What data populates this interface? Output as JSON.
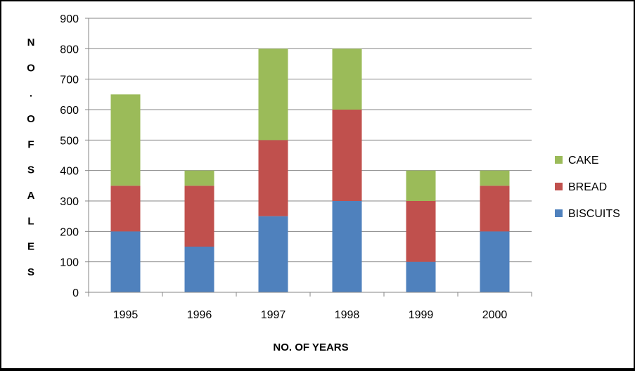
{
  "chart_data": {
    "type": "bar",
    "stacked": true,
    "categories": [
      "1995",
      "1996",
      "1997",
      "1998",
      "1999",
      "2000"
    ],
    "series": [
      {
        "name": "BISCUITS",
        "color": "#4f81bd",
        "values": [
          200,
          150,
          250,
          300,
          100,
          200
        ]
      },
      {
        "name": "BREAD",
        "color": "#c0504d",
        "values": [
          150,
          200,
          250,
          300,
          200,
          150
        ]
      },
      {
        "name": "CAKE",
        "color": "#9bbb59",
        "values": [
          300,
          50,
          300,
          200,
          100,
          50
        ]
      }
    ],
    "xlabel": "NO. OF YEARS",
    "ylabel": "NO. OF SALES",
    "ylim": [
      0,
      900
    ],
    "yticks": [
      "0",
      "100",
      "200",
      "300",
      "400",
      "500",
      "600",
      "700",
      "800",
      "900"
    ],
    "grid": true,
    "legend_position": "right",
    "legend_order": [
      "CAKE",
      "BREAD",
      "BISCUITS"
    ]
  }
}
